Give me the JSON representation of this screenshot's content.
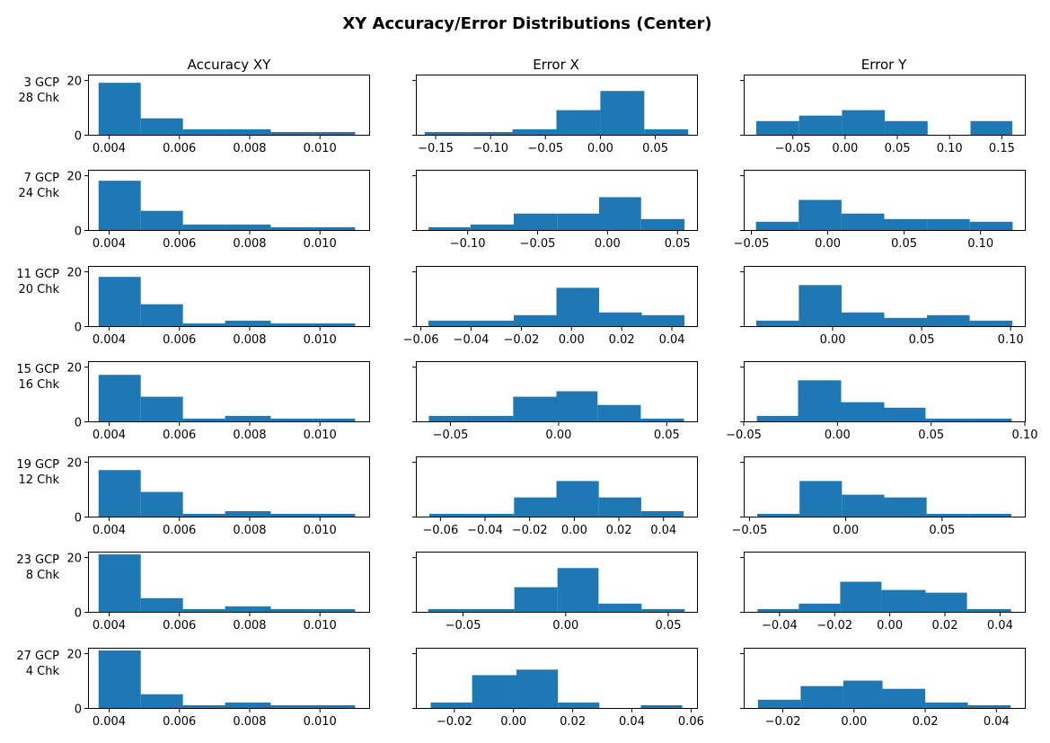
{
  "title": "XY Accuracy/Error Distributions (Center)",
  "column_titles": [
    "Accuracy XY",
    "Error X",
    "Error Y"
  ],
  "row_labels": [
    [
      "3 GCP",
      "28 Chk"
    ],
    [
      "7 GCP",
      "24 Chk"
    ],
    [
      "11 GCP",
      "20 Chk"
    ],
    [
      "15 GCP",
      "16 Chk"
    ],
    [
      "19 GCP",
      "12 Chk"
    ],
    [
      "23 GCP",
      "8 Chk"
    ],
    [
      "27 GCP",
      "4 Chk"
    ]
  ],
  "colors": {
    "bar": "#1f77b4",
    "axes": "#000000",
    "background": "#ffffff"
  },
  "chart_data": {
    "type": "histogram-grid",
    "rows": 7,
    "cols": 3,
    "ylim": [
      0,
      22
    ],
    "yticks": [
      0,
      20
    ],
    "shared_y_per_row": true,
    "grid": false,
    "panels": [
      [
        {
          "col": "Accuracy XY",
          "edges": [
            0.0037,
            0.0049,
            0.0061,
            0.0073,
            0.0086,
            0.0098,
            0.011
          ],
          "counts": [
            19,
            6,
            2,
            2,
            1,
            1
          ],
          "xlim": [
            0.0034,
            0.0114
          ],
          "xticks": [
            0.004,
            0.006,
            0.008,
            0.01
          ],
          "xticklabels": [
            "0.004",
            "0.006",
            "0.008",
            "0.010"
          ]
        },
        {
          "col": "Error X",
          "edges": [
            -0.16,
            -0.12,
            -0.08,
            -0.04,
            0.0,
            0.04,
            0.08
          ],
          "counts": [
            1,
            1,
            2,
            9,
            16,
            2
          ],
          "xlim": [
            -0.168,
            0.088
          ],
          "xticks": [
            -0.15,
            -0.1,
            -0.05,
            0.0,
            0.05
          ],
          "xticklabels": [
            "−0.15",
            "−0.10",
            "−0.05",
            "0.00",
            "0.05"
          ]
        },
        {
          "col": "Error Y",
          "edges": [
            -0.085,
            -0.044,
            -0.003,
            0.038,
            0.079,
            0.12,
            0.16
          ],
          "counts": [
            5,
            7,
            9,
            5,
            0,
            5
          ],
          "xlim": [
            -0.097,
            0.172
          ],
          "xticks": [
            -0.05,
            0.0,
            0.05,
            0.1,
            0.15
          ],
          "xticklabels": [
            "−0.05",
            "0.00",
            "0.05",
            "0.10",
            "0.15"
          ]
        }
      ],
      [
        {
          "col": "Accuracy XY",
          "edges": [
            0.0037,
            0.0049,
            0.0061,
            0.0073,
            0.0086,
            0.0098,
            0.011
          ],
          "counts": [
            18,
            7,
            2,
            2,
            1,
            1
          ],
          "xlim": [
            0.0034,
            0.0114
          ],
          "xticks": [
            0.004,
            0.006,
            0.008,
            0.01
          ],
          "xticklabels": [
            "0.004",
            "0.006",
            "0.008",
            "0.010"
          ]
        },
        {
          "col": "Error X",
          "edges": [
            -0.128,
            -0.098,
            -0.067,
            -0.036,
            -0.006,
            0.024,
            0.055
          ],
          "counts": [
            1,
            2,
            6,
            6,
            12,
            4
          ],
          "xlim": [
            -0.137,
            0.064
          ],
          "xticks": [
            -0.1,
            -0.05,
            0.0,
            0.05
          ],
          "xticklabels": [
            "−0.10",
            "−0.05",
            "0.00",
            "0.05"
          ]
        },
        {
          "col": "Error Y",
          "edges": [
            -0.047,
            -0.019,
            0.009,
            0.037,
            0.065,
            0.093,
            0.121
          ],
          "counts": [
            3,
            11,
            6,
            4,
            4,
            3
          ],
          "xlim": [
            -0.055,
            0.129
          ],
          "xticks": [
            -0.05,
            0.0,
            0.05,
            0.1
          ],
          "xticklabels": [
            "−0.05",
            "0.00",
            "0.05",
            "0.10"
          ]
        }
      ],
      [
        {
          "col": "Accuracy XY",
          "edges": [
            0.0037,
            0.0049,
            0.0061,
            0.0073,
            0.0086,
            0.0098,
            0.011
          ],
          "counts": [
            18,
            8,
            1,
            2,
            1,
            1
          ],
          "xlim": [
            0.0034,
            0.0114
          ],
          "xticks": [
            0.004,
            0.006,
            0.008,
            0.01
          ],
          "xticklabels": [
            "0.004",
            "0.006",
            "0.008",
            "0.010"
          ]
        },
        {
          "col": "Error X",
          "edges": [
            -0.057,
            -0.04,
            -0.023,
            -0.006,
            0.011,
            0.028,
            0.045
          ],
          "counts": [
            2,
            2,
            4,
            14,
            5,
            4
          ],
          "xlim": [
            -0.062,
            0.05
          ],
          "xticks": [
            -0.06,
            -0.04,
            -0.02,
            0.0,
            0.02,
            0.04
          ],
          "xticklabels": [
            "−0.06",
            "−0.04",
            "−0.02",
            "0.00",
            "0.02",
            "0.04"
          ]
        },
        {
          "col": "Error Y",
          "edges": [
            -0.043,
            -0.019,
            0.005,
            0.029,
            0.053,
            0.077,
            0.101
          ],
          "counts": [
            2,
            15,
            5,
            3,
            4,
            2
          ],
          "xlim": [
            -0.05,
            0.108
          ],
          "xticks": [
            0.0,
            0.05,
            0.1
          ],
          "xticklabels": [
            "0.00",
            "0.05",
            "0.10"
          ]
        }
      ],
      [
        {
          "col": "Accuracy XY",
          "edges": [
            0.0037,
            0.0049,
            0.0061,
            0.0073,
            0.0086,
            0.0098,
            0.011
          ],
          "counts": [
            17,
            9,
            1,
            2,
            1,
            1
          ],
          "xlim": [
            0.0034,
            0.0114
          ],
          "xticks": [
            0.004,
            0.006,
            0.008,
            0.01
          ],
          "xticklabels": [
            "0.004",
            "0.006",
            "0.008",
            "0.010"
          ]
        },
        {
          "col": "Error X",
          "edges": [
            -0.06,
            -0.04,
            -0.021,
            -0.001,
            0.018,
            0.038,
            0.058
          ],
          "counts": [
            2,
            2,
            9,
            11,
            6,
            1
          ],
          "xlim": [
            -0.066,
            0.064
          ],
          "xticks": [
            -0.05,
            0.0,
            0.05
          ],
          "xticklabels": [
            "−0.05",
            "0.00",
            "0.05"
          ]
        },
        {
          "col": "Error Y",
          "edges": [
            -0.043,
            -0.021,
            0.002,
            0.025,
            0.047,
            0.07,
            0.093
          ],
          "counts": [
            2,
            15,
            7,
            5,
            1,
            1
          ],
          "xlim": [
            -0.05,
            0.1
          ],
          "xticks": [
            -0.05,
            0.0,
            0.05,
            0.1
          ],
          "xticklabels": [
            "−0.05",
            "0.00",
            "0.05",
            "0.10"
          ]
        }
      ],
      [
        {
          "col": "Accuracy XY",
          "edges": [
            0.0037,
            0.0049,
            0.0061,
            0.0073,
            0.0086,
            0.0098,
            0.011
          ],
          "counts": [
            17,
            9,
            1,
            2,
            1,
            1
          ],
          "xlim": [
            0.0034,
            0.0114
          ],
          "xticks": [
            0.004,
            0.006,
            0.008,
            0.01
          ],
          "xticklabels": [
            "0.004",
            "0.006",
            "0.008",
            "0.010"
          ]
        },
        {
          "col": "Error X",
          "edges": [
            -0.065,
            -0.046,
            -0.027,
            -0.008,
            0.011,
            0.03,
            0.049
          ],
          "counts": [
            1,
            1,
            7,
            13,
            7,
            2
          ],
          "xlim": [
            -0.071,
            0.055
          ],
          "xticks": [
            -0.06,
            -0.04,
            -0.02,
            0.0,
            0.02,
            0.04
          ],
          "xticklabels": [
            "−0.06",
            "−0.04",
            "−0.02",
            "0.00",
            "0.02",
            "0.04"
          ]
        },
        {
          "col": "Error Y",
          "edges": [
            -0.046,
            -0.024,
            -0.002,
            0.02,
            0.042,
            0.064,
            0.086
          ],
          "counts": [
            1,
            13,
            8,
            7,
            1,
            1
          ],
          "xlim": [
            -0.053,
            0.093
          ],
          "xticks": [
            -0.05,
            0.0,
            0.05
          ],
          "xticklabels": [
            "−0.05",
            "0.00",
            "0.05"
          ]
        }
      ],
      [
        {
          "col": "Accuracy XY",
          "edges": [
            0.0037,
            0.0049,
            0.0061,
            0.0073,
            0.0086,
            0.0098,
            0.011
          ],
          "counts": [
            21,
            5,
            1,
            2,
            1,
            1
          ],
          "xlim": [
            0.0034,
            0.0114
          ],
          "xticks": [
            0.004,
            0.006,
            0.008,
            0.01
          ],
          "xticklabels": [
            "0.004",
            "0.006",
            "0.008",
            "0.010"
          ]
        },
        {
          "col": "Error X",
          "edges": [
            -0.067,
            -0.046,
            -0.025,
            -0.004,
            0.016,
            0.037,
            0.058
          ],
          "counts": [
            1,
            1,
            9,
            16,
            3,
            1
          ],
          "xlim": [
            -0.073,
            0.064
          ],
          "xticks": [
            -0.05,
            0.0,
            0.05
          ],
          "xticklabels": [
            "−0.05",
            "0.00",
            "0.05"
          ]
        },
        {
          "col": "Error Y",
          "edges": [
            -0.048,
            -0.033,
            -0.018,
            -0.003,
            0.013,
            0.028,
            0.044
          ],
          "counts": [
            1,
            3,
            11,
            8,
            7,
            1
          ],
          "xlim": [
            -0.053,
            0.049
          ],
          "xticks": [
            -0.04,
            -0.02,
            0.0,
            0.02,
            0.04
          ],
          "xticklabels": [
            "−0.04",
            "−0.02",
            "0.00",
            "0.02",
            "0.04"
          ]
        }
      ],
      [
        {
          "col": "Accuracy XY",
          "edges": [
            0.0037,
            0.0049,
            0.0061,
            0.0073,
            0.0086,
            0.0098,
            0.011
          ],
          "counts": [
            21,
            5,
            1,
            2,
            1,
            1
          ],
          "xlim": [
            0.0034,
            0.0114
          ],
          "xticks": [
            0.004,
            0.006,
            0.008,
            0.01
          ],
          "xticklabels": [
            "0.004",
            "0.006",
            "0.008",
            "0.010"
          ]
        },
        {
          "col": "Error X",
          "edges": [
            -0.028,
            -0.014,
            0.001,
            0.015,
            0.029,
            0.043,
            0.057
          ],
          "counts": [
            2,
            12,
            14,
            2,
            0,
            1
          ],
          "xlim": [
            -0.033,
            0.062
          ],
          "xticks": [
            -0.02,
            0.0,
            0.02,
            0.04,
            0.06
          ],
          "xticklabels": [
            "−0.02",
            "0.00",
            "0.02",
            "0.04",
            "0.06"
          ]
        },
        {
          "col": "Error Y",
          "edges": [
            -0.027,
            -0.015,
            -0.003,
            0.008,
            0.02,
            0.032,
            0.044
          ],
          "counts": [
            3,
            8,
            10,
            7,
            2,
            1
          ],
          "xlim": [
            -0.031,
            0.048
          ],
          "xticks": [
            -0.02,
            0.0,
            0.02,
            0.04
          ],
          "xticklabels": [
            "−0.02",
            "0.00",
            "0.02",
            "0.04"
          ]
        }
      ]
    ]
  }
}
